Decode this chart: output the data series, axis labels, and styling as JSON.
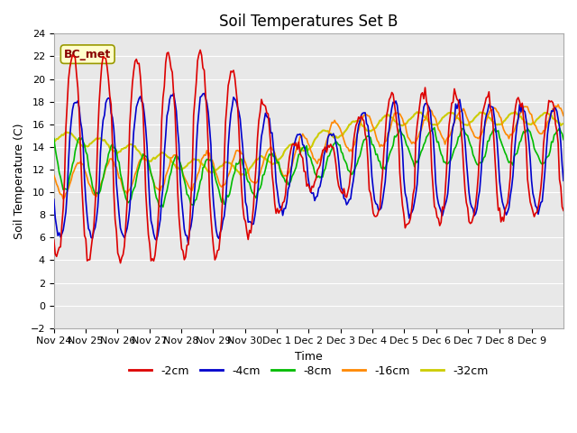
{
  "title": "Soil Temperatures Set B",
  "xlabel": "Time",
  "ylabel": "Soil Temperature (C)",
  "ylim": [
    -2,
    24
  ],
  "yticks": [
    -2,
    0,
    2,
    4,
    6,
    8,
    10,
    12,
    14,
    16,
    18,
    20,
    22,
    24
  ],
  "x_labels": [
    "Nov 24",
    "Nov 25",
    "Nov 26",
    "Nov 27",
    "Nov 28",
    "Nov 29",
    "Nov 30",
    "Dec 1",
    "Dec 2",
    "Dec 3",
    "Dec 4",
    "Dec 5",
    "Dec 6",
    "Dec 7",
    "Dec 8",
    "Dec 9"
  ],
  "legend_labels": [
    "-2cm",
    "-4cm",
    "-8cm",
    "-16cm",
    "-32cm"
  ],
  "legend_colors": [
    "#dd0000",
    "#0000cc",
    "#00bb00",
    "#ff8800",
    "#cccc00"
  ],
  "line_widths": [
    1.2,
    1.2,
    1.2,
    1.2,
    1.5
  ],
  "annotation_text": "BC_met",
  "annotation_bg": "#ffffcc",
  "annotation_border": "#999900",
  "annotation_text_color": "#880000",
  "fig_bg": "#ffffff",
  "plot_bg": "#e8e8e8",
  "grid_color": "#ffffff",
  "title_fontsize": 12,
  "axis_fontsize": 9,
  "tick_fontsize": 8
}
